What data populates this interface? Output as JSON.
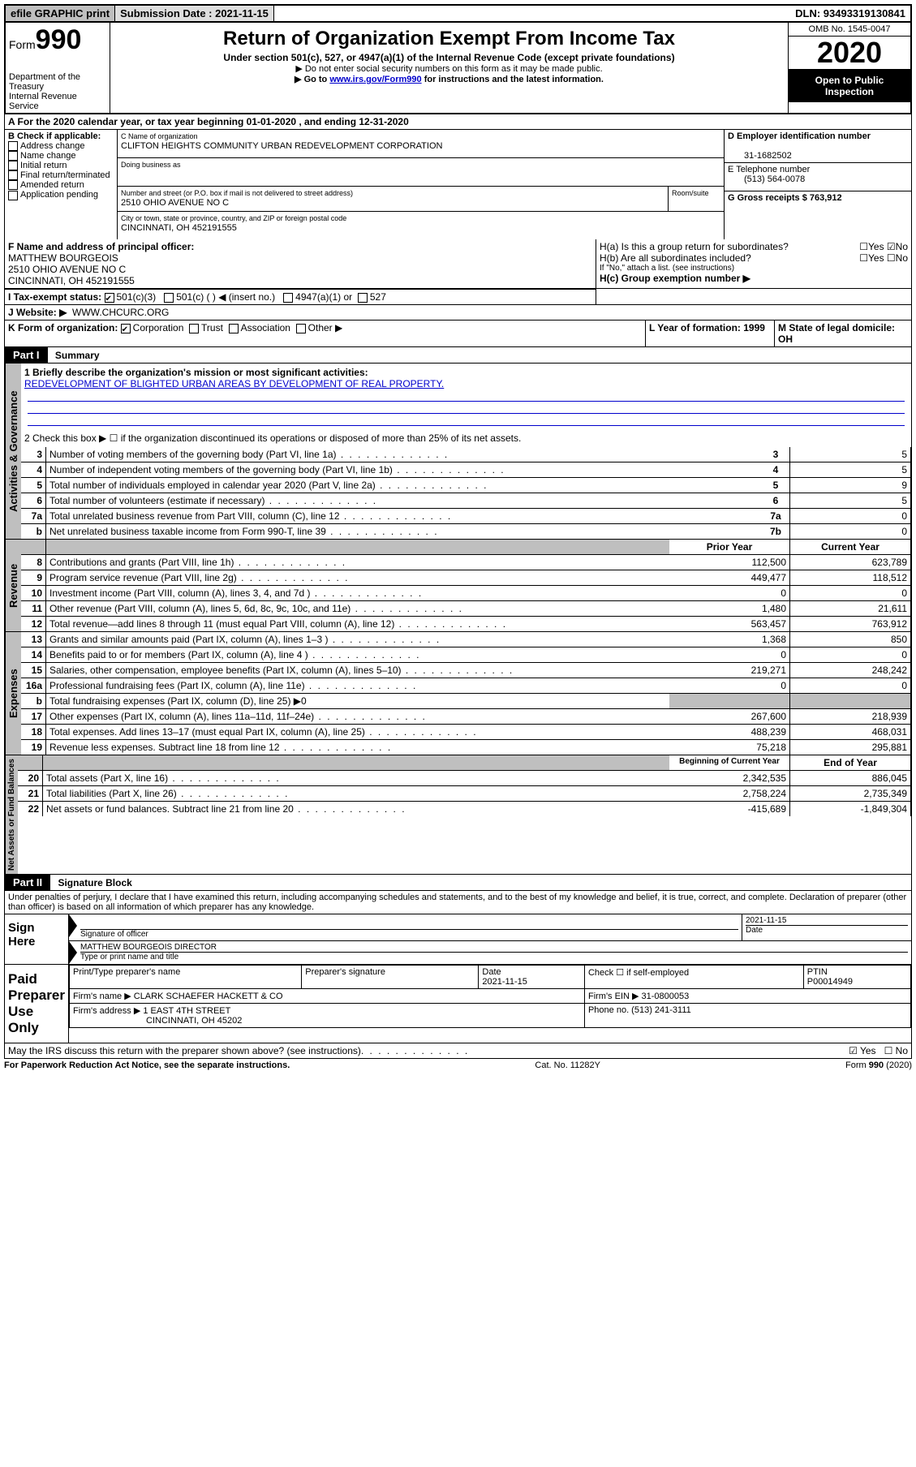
{
  "top": {
    "efile": "efile GRAPHIC print",
    "sub_label": "Submission Date : 2021-11-15",
    "dln": "DLN: 93493319130841"
  },
  "header": {
    "form_prefix": "Form",
    "form_num": "990",
    "dept": "Department of the Treasury",
    "irs": "Internal Revenue Service",
    "title": "Return of Organization Exempt From Income Tax",
    "subtitle": "Under section 501(c), 527, or 4947(a)(1) of the Internal Revenue Code (except private foundations)",
    "note1": "▶ Do not enter social security numbers on this form as it may be made public.",
    "note2_a": "▶ Go to ",
    "note2_link": "www.irs.gov/Form990",
    "note2_b": " for instructions and the latest information.",
    "omb": "OMB No. 1545-0047",
    "year": "2020",
    "open": "Open to Public Inspection"
  },
  "A": {
    "text": "A For the 2020 calendar year, or tax year beginning 01-01-2020  , and ending 12-31-2020"
  },
  "B": {
    "label": "B Check if applicable:",
    "opts": [
      "Address change",
      "Name change",
      "Initial return",
      "Final return/terminated",
      "Amended return",
      "Application pending"
    ]
  },
  "C": {
    "name_lbl": "C Name of organization",
    "name": "CLIFTON HEIGHTS COMMUNITY URBAN REDEVELOPMENT CORPORATION",
    "dba_lbl": "Doing business as",
    "addr_lbl": "Number and street (or P.O. box if mail is not delivered to street address)",
    "room_lbl": "Room/suite",
    "addr": "2510 OHIO AVENUE NO C",
    "city_lbl": "City or town, state or province, country, and ZIP or foreign postal code",
    "city": "CINCINNATI, OH 452191555"
  },
  "D": {
    "lbl": "D Employer identification number",
    "val": "31-1682502"
  },
  "E": {
    "lbl": "E Telephone number",
    "val": "(513) 564-0078"
  },
  "G": {
    "lbl": "G Gross receipts $ 763,912"
  },
  "F": {
    "lbl": "F Name and address of principal officer:",
    "name": "MATTHEW BOURGEOIS",
    "addr1": "2510 OHIO AVENUE NO C",
    "addr2": "CINCINNATI, OH 452191555"
  },
  "H": {
    "a": "H(a) Is this a group return for subordinates?",
    "b": "H(b) Are all subordinates included?",
    "b_note": "If \"No,\" attach a list. (see instructions)",
    "c": "H(c) Group exemption number ▶"
  },
  "I": {
    "lbl": "I Tax-exempt status:",
    "o1": "501(c)(3)",
    "o2": "501(c) (  ) ◀ (insert no.)",
    "o3": "4947(a)(1) or",
    "o4": "527"
  },
  "J": {
    "lbl": "J    Website: ▶",
    "val": "WWW.CHCURC.ORG"
  },
  "K": {
    "lbl": "K Form of organization:",
    "opts": [
      "Corporation",
      "Trust",
      "Association",
      "Other ▶"
    ]
  },
  "L": {
    "lbl": "L Year of formation: 1999"
  },
  "M": {
    "lbl": "M State of legal domicile: OH"
  },
  "part1": {
    "hdr": "Part I",
    "title": "Summary",
    "l1_lbl": "1  Briefly describe the organization's mission or most significant activities:",
    "l1_val": "REDEVELOPMENT OF BLIGHTED URBAN AREAS BY DEVELOPMENT OF REAL PROPERTY.",
    "l2": "2   Check this box ▶ ☐  if the organization discontinued its operations or disposed of more than 25% of its net assets.",
    "sideA": "Activities & Governance",
    "sideR": "Revenue",
    "sideE": "Expenses",
    "sideN": "Net Assets or Fund Balances",
    "rows_gov": [
      {
        "n": "3",
        "d": "Number of voting members of the governing body (Part VI, line 1a)",
        "c": "3",
        "v": "5"
      },
      {
        "n": "4",
        "d": "Number of independent voting members of the governing body (Part VI, line 1b)",
        "c": "4",
        "v": "5"
      },
      {
        "n": "5",
        "d": "Total number of individuals employed in calendar year 2020 (Part V, line 2a)",
        "c": "5",
        "v": "9"
      },
      {
        "n": "6",
        "d": "Total number of volunteers (estimate if necessary)",
        "c": "6",
        "v": "5"
      },
      {
        "n": "7a",
        "d": "Total unrelated business revenue from Part VIII, column (C), line 12",
        "c": "7a",
        "v": "0"
      },
      {
        "n": "b",
        "d": "Net unrelated business taxable income from Form 990-T, line 39",
        "c": "7b",
        "v": "0"
      }
    ],
    "hdr_prior": "Prior Year",
    "hdr_curr": "Current Year",
    "rows_rev": [
      {
        "n": "8",
        "d": "Contributions and grants (Part VIII, line 1h)",
        "p": "112,500",
        "c": "623,789"
      },
      {
        "n": "9",
        "d": "Program service revenue (Part VIII, line 2g)",
        "p": "449,477",
        "c": "118,512"
      },
      {
        "n": "10",
        "d": "Investment income (Part VIII, column (A), lines 3, 4, and 7d )",
        "p": "0",
        "c": "0"
      },
      {
        "n": "11",
        "d": "Other revenue (Part VIII, column (A), lines 5, 6d, 8c, 9c, 10c, and 11e)",
        "p": "1,480",
        "c": "21,611"
      },
      {
        "n": "12",
        "d": "Total revenue—add lines 8 through 11 (must equal Part VIII, column (A), line 12)",
        "p": "563,457",
        "c": "763,912"
      }
    ],
    "rows_exp": [
      {
        "n": "13",
        "d": "Grants and similar amounts paid (Part IX, column (A), lines 1–3 )",
        "p": "1,368",
        "c": "850"
      },
      {
        "n": "14",
        "d": "Benefits paid to or for members (Part IX, column (A), line 4 )",
        "p": "0",
        "c": "0"
      },
      {
        "n": "15",
        "d": "Salaries, other compensation, employee benefits (Part IX, column (A), lines 5–10)",
        "p": "219,271",
        "c": "248,242"
      },
      {
        "n": "16a",
        "d": "Professional fundraising fees (Part IX, column (A), line 11e)",
        "p": "0",
        "c": "0"
      },
      {
        "n": "b",
        "d": "Total fundraising expenses (Part IX, column (D), line 25) ▶0",
        "p": "",
        "c": "",
        "shaded": true
      },
      {
        "n": "17",
        "d": "Other expenses (Part IX, column (A), lines 11a–11d, 11f–24e)",
        "p": "267,600",
        "c": "218,939"
      },
      {
        "n": "18",
        "d": "Total expenses. Add lines 13–17 (must equal Part IX, column (A), line 25)",
        "p": "488,239",
        "c": "468,031"
      },
      {
        "n": "19",
        "d": "Revenue less expenses. Subtract line 18 from line 12",
        "p": "75,218",
        "c": "295,881"
      }
    ],
    "hdr_beg": "Beginning of Current Year",
    "hdr_end": "End of Year",
    "rows_net": [
      {
        "n": "20",
        "d": "Total assets (Part X, line 16)",
        "p": "2,342,535",
        "c": "886,045"
      },
      {
        "n": "21",
        "d": "Total liabilities (Part X, line 26)",
        "p": "2,758,224",
        "c": "2,735,349"
      },
      {
        "n": "22",
        "d": "Net assets or fund balances. Subtract line 21 from line 20",
        "p": "-415,689",
        "c": "-1,849,304"
      }
    ]
  },
  "part2": {
    "hdr": "Part II",
    "title": "Signature Block",
    "perjury": "Under penalties of perjury, I declare that I have examined this return, including accompanying schedules and statements, and to the best of my knowledge and belief, it is true, correct, and complete. Declaration of preparer (other than officer) is based on all information of which preparer has any knowledge."
  },
  "sign": {
    "here": "Sign Here",
    "sig_lbl": "Signature of officer",
    "date_lbl": "Date",
    "date": "2021-11-15",
    "name": "MATTHEW BOURGEOIS  DIRECTOR",
    "name_lbl": "Type or print name and title"
  },
  "paid": {
    "here": "Paid Preparer Use Only",
    "r1": [
      "Print/Type preparer's name",
      "Preparer's signature",
      "Date\n2021-11-15",
      "Check ☐ if self-employed",
      "PTIN\nP00014949"
    ],
    "firm_lbl": "Firm's name    ▶",
    "firm": "CLARK SCHAEFER HACKETT & CO",
    "ein_lbl": "Firm's EIN ▶ 31-0800053",
    "addr_lbl": "Firm's address ▶",
    "addr1": "1 EAST 4TH STREET",
    "addr2": "CINCINNATI, OH  45202",
    "phone": "Phone no. (513) 241-3111"
  },
  "discuss": "May the IRS discuss this return with the preparer shown above? (see instructions)",
  "footer": {
    "l": "For Paperwork Reduction Act Notice, see the separate instructions.",
    "m": "Cat. No. 11282Y",
    "r": "Form 990 (2020)"
  }
}
